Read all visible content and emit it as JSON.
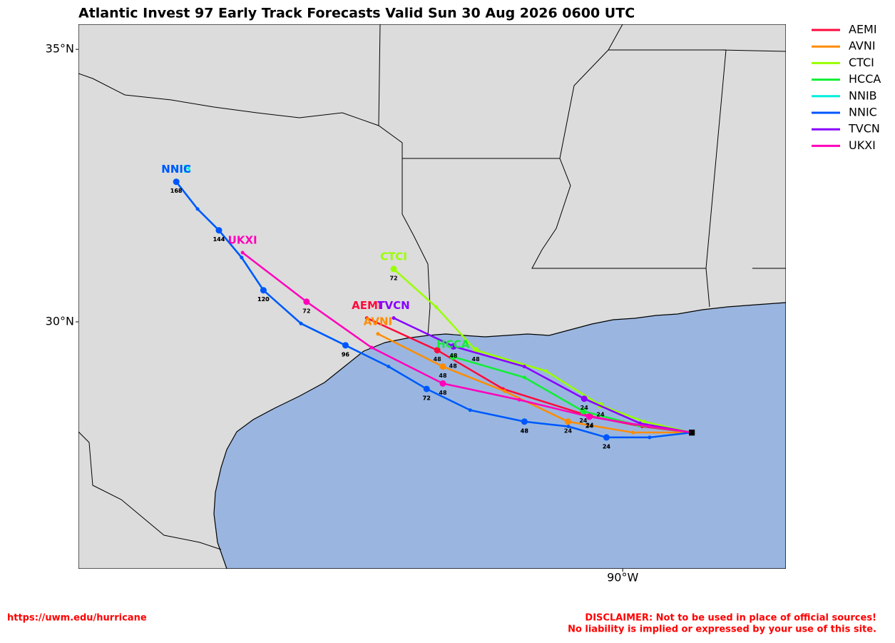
{
  "title": "Atlantic Invest 97 Early Track Forecasts Valid Sun 30 Aug 2026 0600 UTC",
  "map": {
    "lonlim": [
      -101.74,
      -86.48
    ],
    "latlim": [
      25.47,
      35.46
    ],
    "lat_ticks": [
      {
        "value": 35,
        "label": "35°N"
      },
      {
        "value": 30,
        "label": "30°N"
      }
    ],
    "lon_ticks": [
      {
        "value": -90,
        "label": "90°W"
      }
    ]
  },
  "tracks": [
    {
      "name": "AEMI",
      "color": "#ff0a3c",
      "points": [
        {
          "lon": -88.51,
          "lat": 27.97
        },
        {
          "lon": -89.58,
          "lat": 28.08
        },
        {
          "lon": -90.71,
          "lat": 28.27,
          "hour": 24
        },
        {
          "lon": -92.58,
          "lat": 28.77
        },
        {
          "lon": -94.0,
          "lat": 29.48,
          "hour": 48
        },
        {
          "lon": -95.52,
          "lat": 30.07
        }
      ]
    },
    {
      "name": "AVNI",
      "color": "#ff8c00",
      "points": [
        {
          "lon": -88.51,
          "lat": 27.97
        },
        {
          "lon": -89.78,
          "lat": 27.97
        },
        {
          "lon": -91.18,
          "lat": 28.17,
          "hour": 24
        },
        {
          "lon": -92.55,
          "lat": 28.73
        },
        {
          "lon": -93.88,
          "lat": 29.18,
          "hour": 48
        },
        {
          "lon": -95.28,
          "lat": 29.78
        }
      ]
    },
    {
      "name": "CTCI",
      "color": "#99ff00",
      "points": [
        {
          "lon": -88.51,
          "lat": 27.97
        },
        {
          "lon": -89.54,
          "lat": 28.17
        },
        {
          "lon": -90.48,
          "lat": 28.47,
          "hour": 24
        },
        {
          "lon": -91.66,
          "lat": 29.1
        },
        {
          "lon": -93.17,
          "lat": 29.48,
          "hour": 48
        },
        {
          "lon": -94.02,
          "lat": 30.27
        },
        {
          "lon": -94.94,
          "lat": 30.97,
          "hour": 72
        }
      ]
    },
    {
      "name": "HCCA",
      "color": "#11ee33",
      "points": [
        {
          "lon": -88.51,
          "lat": 27.97
        },
        {
          "lon": -89.66,
          "lat": 28.1
        },
        {
          "lon": -90.85,
          "lat": 28.36,
          "hour": 24
        },
        {
          "lon": -92.12,
          "lat": 28.98
        },
        {
          "lon": -93.66,
          "lat": 29.36,
          "hour": 48
        }
      ]
    },
    {
      "name": "NNIB",
      "color": "#00eedd",
      "points": [
        {
          "lon": -88.51,
          "lat": 27.97
        },
        {
          "lon": -89.42,
          "lat": 27.88
        },
        {
          "lon": -90.35,
          "lat": 27.88,
          "hour": 24
        },
        {
          "lon": -91.17,
          "lat": 28.08
        },
        {
          "lon": -92.12,
          "lat": 28.17,
          "hour": 48
        },
        {
          "lon": -93.29,
          "lat": 28.38
        },
        {
          "lon": -94.23,
          "lat": 28.77,
          "hour": 72
        },
        {
          "lon": -95.05,
          "lat": 29.18
        },
        {
          "lon": -95.98,
          "lat": 29.57,
          "hour": 96
        },
        {
          "lon": -96.94,
          "lat": 29.97
        },
        {
          "lon": -97.75,
          "lat": 30.58,
          "hour": 120
        },
        {
          "lon": -98.22,
          "lat": 31.18
        },
        {
          "lon": -98.71,
          "lat": 31.68,
          "hour": 144
        },
        {
          "lon": -99.17,
          "lat": 32.07
        },
        {
          "lon": -99.63,
          "lat": 32.57,
          "hour": 168
        }
      ]
    },
    {
      "name": "NNIC",
      "color": "#0055ff",
      "points": [
        {
          "lon": -88.51,
          "lat": 27.97
        },
        {
          "lon": -89.42,
          "lat": 27.88
        },
        {
          "lon": -90.35,
          "lat": 27.88,
          "hour": 24
        },
        {
          "lon": -91.17,
          "lat": 28.08
        },
        {
          "lon": -92.12,
          "lat": 28.17,
          "hour": 48
        },
        {
          "lon": -93.29,
          "lat": 28.38
        },
        {
          "lon": -94.23,
          "lat": 28.77,
          "hour": 72
        },
        {
          "lon": -95.05,
          "lat": 29.18
        },
        {
          "lon": -95.98,
          "lat": 29.57,
          "hour": 96
        },
        {
          "lon": -96.94,
          "lat": 29.97
        },
        {
          "lon": -97.75,
          "lat": 30.58,
          "hour": 120
        },
        {
          "lon": -98.22,
          "lat": 31.18
        },
        {
          "lon": -98.71,
          "lat": 31.68,
          "hour": 144
        },
        {
          "lon": -99.17,
          "lat": 32.07
        },
        {
          "lon": -99.63,
          "lat": 32.57,
          "hour": 168
        }
      ]
    },
    {
      "name": "TVCN",
      "color": "#8800ff",
      "points": [
        {
          "lon": -88.51,
          "lat": 27.97
        },
        {
          "lon": -89.63,
          "lat": 28.14
        },
        {
          "lon": -90.83,
          "lat": 28.59,
          "hour": 24
        },
        {
          "lon": -92.12,
          "lat": 29.18
        },
        {
          "lon": -93.65,
          "lat": 29.55,
          "hour": 48
        },
        {
          "lon": -94.94,
          "lat": 30.07
        }
      ]
    },
    {
      "name": "UKXI",
      "color": "#ff00bb",
      "points": [
        {
          "lon": -88.51,
          "lat": 27.97
        },
        {
          "lon": -89.43,
          "lat": 28.08
        },
        {
          "lon": -90.72,
          "lat": 28.26,
          "hour": 24
        },
        {
          "lon": -92.23,
          "lat": 28.57
        },
        {
          "lon": -93.88,
          "lat": 28.87,
          "hour": 48
        },
        {
          "lon": -95.42,
          "lat": 29.53
        },
        {
          "lon": -96.82,
          "lat": 30.37,
          "hour": 72
        },
        {
          "lon": -98.2,
          "lat": 31.27
        }
      ]
    }
  ],
  "footer": {
    "link": "https://uwm.edu/hurricane",
    "disclaimer": [
      "DISCLAIMER: Not to be used in place of official sources!",
      "No liability is implied or expressed by your use of this site."
    ]
  }
}
